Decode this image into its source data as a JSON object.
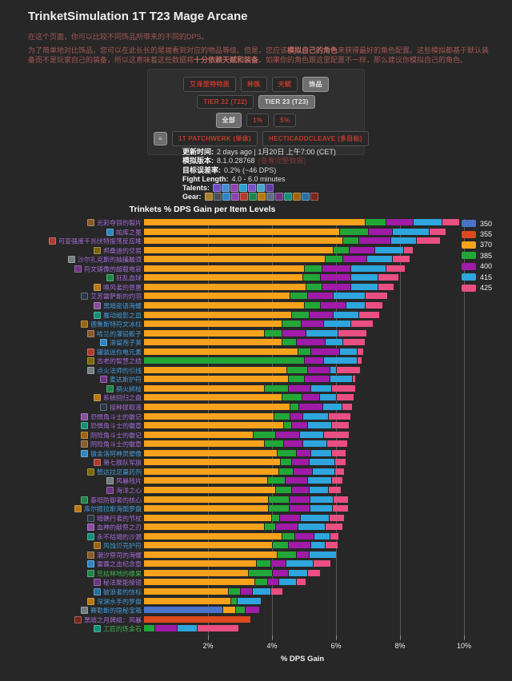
{
  "page": {
    "title": "TrinketSimulation 1T T23 Mage Arcane",
    "intro1": "在这个页面，你可以比较不同饰品所带来的不同的DPS。",
    "intro2_parts": [
      {
        "t": "为了简单地对比饰品，您可以在此长长的尾端看到对应的物品等级。但是，您应该"
      },
      {
        "t": "模拟自己的角色",
        "b": true
      },
      {
        "t": "来获得最好的角色配置。这些模拟都基于默认装备而不是玩家自己的装备，所以这意味着这些数据将"
      },
      {
        "t": "十分依赖天赋和装备",
        "b": true
      },
      {
        "t": "。如果你的角色跟这里配置不一样，那么建议你模拟自己的角色。"
      }
    ]
  },
  "controls": {
    "rows": [
      {
        "name": "data-type",
        "buttons": [
          {
            "label": "艾泽里特特质",
            "selected": false
          },
          {
            "label": "种族",
            "selected": false
          },
          {
            "label": "天赋",
            "selected": false
          },
          {
            "label": "饰品",
            "selected": true
          }
        ]
      },
      {
        "name": "tier",
        "buttons": [
          {
            "label": "TIER 22 (T22)",
            "selected": false
          },
          {
            "label": "TIER 23 (T23)",
            "selected": true
          }
        ]
      },
      {
        "name": "filter",
        "buttons": [
          {
            "label": "全部",
            "selected": true
          },
          {
            "label": "1%",
            "selected": false
          },
          {
            "label": "5%",
            "selected": false
          }
        ]
      },
      {
        "name": "fight-style",
        "buttons": [
          {
            "label": "≡",
            "selected": true,
            "mini": true
          },
          {
            "label": "1T PATCHWERK (单体)",
            "selected": false
          },
          {
            "label": "HECTICADDCLEAVE (多目标)",
            "selected": false
          }
        ]
      }
    ]
  },
  "info": {
    "lines": [
      {
        "label": "更新时间:",
        "value": "2 days ago | 1月20日 上午7:00 (CET)"
      },
      {
        "label": "模拟版本:",
        "value": "8.1.0.28768",
        "extra": "(查看完整数据)"
      },
      {
        "label": "目标误差率:",
        "value": "0.2% (~46 DPS)"
      },
      {
        "label": "Fight Length:",
        "value": "4.0 - 6.0 minutes"
      },
      {
        "label": "Talents:",
        "tiles": [
          "#6d4bc4",
          "#3f8fd4",
          "#8e44ad",
          "#2e9fd0",
          "#7652c8",
          "#4aa3c8",
          "#5b3aa8"
        ]
      },
      {
        "label": "Gear:",
        "tiles": [
          "#a8802a",
          "#4a4f55",
          "#2e86c1",
          "#8e44ad",
          "#b03a2e",
          "#1e8449",
          "#b9770e",
          "#5d6d7e",
          "#6c3483",
          "#148f77",
          "#9c640c",
          "#2471a3",
          "#7b241c"
        ]
      }
    ]
  },
  "chart_data": {
    "type": "bar",
    "stacked": true,
    "title": "Trinkets % DPS Gain per Item Levels",
    "xlabel": "% DPS Gain",
    "xlim": [
      0,
      11
    ],
    "x_ticks": [
      {
        "v": 2,
        "label": "2%"
      },
      {
        "v": 4,
        "label": "4%"
      },
      {
        "v": 6,
        "label": "6%"
      },
      {
        "v": 8,
        "label": "8%"
      },
      {
        "v": 10,
        "label": "10%"
      }
    ],
    "grid": true,
    "legend_position": "top-right",
    "ilvl_order": [
      "350",
      "355",
      "370",
      "385",
      "400",
      "415",
      "425"
    ],
    "ilvl_colors": {
      "350": "#4a73c9",
      "355": "#dd4a1e",
      "370": "#f6a21c",
      "385": "#23a638",
      "400": "#a01ba8",
      "415": "#2ea5dd",
      "425": "#e94f82"
    },
    "legend": [
      {
        "label": "350"
      },
      {
        "label": "355"
      },
      {
        "label": "370"
      },
      {
        "label": "385"
      },
      {
        "label": "400"
      },
      {
        "label": "415"
      },
      {
        "label": "425"
      }
    ],
    "rows": [
      {
        "name": "光彩夺目的裂片",
        "quality": "p",
        "icon": "#8a5a2b",
        "segments": {
          "370": 6.9,
          "385": 0.65,
          "400": 0.85,
          "415": 0.9,
          "425": 0.55
        }
      },
      {
        "name": "帕库之冕",
        "quality": "p",
        "icon": "#2e86c1",
        "segments": {
          "370": 6.1,
          "385": 0.9,
          "400": 0.75,
          "415": 1.15,
          "425": 0.52
        }
      },
      {
        "name": "可变强度千兆伏特振荡反应堆",
        "quality": "p",
        "icon": "#b03a2e",
        "segments": {
          "370": 6.2,
          "385": 0.5,
          "400": 1.0,
          "415": 0.8,
          "425": 0.75
        }
      },
      {
        "name": "邦桑迪的交易",
        "quality": "p",
        "icon": "#7d6608",
        "segments": {
          "370": 5.9,
          "385": 0.5,
          "400": 0.8,
          "415": 0.9,
          "425": 0.3
        }
      },
      {
        "name": "沙尔扎克斯的抽搐触须",
        "quality": "p",
        "icon": "#717d7e",
        "segments": {
          "370": 5.65,
          "385": 0.55,
          "400": 0.75,
          "415": 0.8,
          "425": 0.55
        }
      },
      {
        "name": "符文铸像的超载电容",
        "quality": "p",
        "icon": "#6c3483",
        "segments": {
          "370": 5.0,
          "385": 0.55,
          "400": 0.9,
          "415": 1.1,
          "425": 0.6
        }
      },
      {
        "name": "狂乱血球",
        "quality": "p",
        "icon": "#1e8449",
        "segments": {
          "370": 4.95,
          "385": 0.55,
          "400": 0.95,
          "415": 0.85,
          "425": 0.65
        }
      },
      {
        "name": "唤风者的恩惠",
        "quality": "p",
        "icon": "#b9770e",
        "segments": {
          "370": 5.05,
          "385": 0.5,
          "400": 0.9,
          "415": 0.85,
          "425": 0.5
        }
      },
      {
        "name": "艾苏雷萨斯的灼羽",
        "quality": "p",
        "icon": "#283747",
        "segments": {
          "370": 4.55,
          "385": 0.55,
          "400": 0.8,
          "415": 1.0,
          "425": 0.7
        }
      },
      {
        "name": "黑暗密语海螺",
        "quality": "b",
        "icon": "#884ea0",
        "segments": {
          "370": 5.0,
          "385": 0.5,
          "400": 0.8,
          "415": 0.6,
          "425": 0.55
        }
      },
      {
        "name": "蠢动暗影之皿",
        "quality": "b",
        "icon": "#148f77",
        "segments": {
          "370": 4.6,
          "385": 0.55,
          "400": 0.75,
          "415": 0.8,
          "425": 0.65
        }
      },
      {
        "name": "德鲁斯特符文冰柱",
        "quality": "b",
        "icon": "#9c640c",
        "segments": {
          "370": 4.3,
          "385": 0.6,
          "400": 0.7,
          "415": 0.85,
          "425": 0.7
        }
      },
      {
        "name": "哈兰的灌铅骰子",
        "quality": "b",
        "icon": "#8a5a2b",
        "segments": {
          "370": 3.75,
          "385": 0.55,
          "400": 0.75,
          "415": 1.0,
          "425": 0.9
        }
      },
      {
        "name": "滞留孢子荚",
        "quality": "b",
        "icon": "#2e86c1",
        "segments": {
          "370": 4.3,
          "385": 0.45,
          "400": 0.9,
          "415": 0.55,
          "425": 0.7
        }
      },
      {
        "name": "罐装迷你电元素",
        "quality": "b",
        "icon": "#b03a2e",
        "segments": {
          "370": 4.8,
          "385": 0.4,
          "400": 0.9,
          "415": 0.55,
          "425": 0.2
        }
      },
      {
        "name": "古老的智慧之结",
        "quality": "p",
        "icon": "#7d6608",
        "segments": {
          "385": 5.0,
          "400": 0.6,
          "415": 1.05,
          "425": 0.15
        }
      },
      {
        "name": "点火法师的引线",
        "quality": "b",
        "icon": "#717d7e",
        "segments": {
          "370": 4.45,
          "385": 0.65,
          "400": 0.7,
          "415": 0.2,
          "425": 0.75
        }
      },
      {
        "name": "麦达斯护符",
        "quality": "b",
        "icon": "#6c3483",
        "segments": {
          "370": 4.5,
          "385": 0.5,
          "400": 0.8,
          "415": 0.7,
          "425": 0.1
        }
      },
      {
        "name": "祸火树枝",
        "quality": "b",
        "icon": "#1e8449",
        "segments": {
          "370": 3.75,
          "385": 0.75,
          "400": 0.7,
          "415": 0.65,
          "425": 0.75
        }
      },
      {
        "name": "系统回归之盘",
        "quality": "p",
        "icon": "#b9770e",
        "segments": {
          "370": 4.3,
          "385": 0.62,
          "400": 0.55,
          "415": 0.53,
          "425": 0.55
        }
      },
      {
        "name": "接种提取液",
        "quality": "p",
        "icon": "#283747",
        "segments": {
          "370": 4.55,
          "385": 0.28,
          "400": 0.75,
          "415": 0.6,
          "425": 0.32
        }
      },
      {
        "name": "恐惧角斗士的徽记",
        "quality": "p",
        "icon": "#884ea0",
        "segments": {
          "370": 4.05,
          "385": 0.5,
          "400": 0.4,
          "415": 0.8,
          "425": 0.7
        }
      },
      {
        "name": "恐惧角斗士的徽章",
        "quality": "p",
        "icon": "#148f77",
        "segments": {
          "370": 4.35,
          "385": 0.25,
          "400": 0.5,
          "415": 0.75,
          "425": 0.55
        }
      },
      {
        "name": "阴险角斗士的徽记",
        "quality": "p",
        "icon": "#9c640c",
        "segments": {
          "370": 3.4,
          "385": 0.7,
          "400": 0.75,
          "415": 0.75,
          "425": 0.8
        }
      },
      {
        "name": "阴险角斗士的徽章",
        "quality": "p",
        "icon": "#8a5a2b",
        "segments": {
          "370": 3.75,
          "385": 0.6,
          "400": 0.6,
          "415": 0.75,
          "425": 0.65
        }
      },
      {
        "name": "镀金洛阿神灵塑像",
        "quality": "b",
        "icon": "#2e86c1",
        "segments": {
          "370": 4.15,
          "385": 0.6,
          "400": 0.45,
          "415": 0.65,
          "425": 0.45
        }
      },
      {
        "name": "第七舰队军旗",
        "quality": "p",
        "icon": "#b03a2e",
        "segments": {
          "370": 4.25,
          "385": 0.35,
          "400": 0.55,
          "415": 0.8,
          "425": 0.35
        }
      },
      {
        "name": "赞达拉足量药剂",
        "quality": "b",
        "icon": "#7d6608",
        "segments": {
          "370": 4.2,
          "385": 0.45,
          "400": 0.6,
          "415": 0.7,
          "425": 0.3
        }
      },
      {
        "name": "风暴残片",
        "quality": "p",
        "icon": "#717d7e",
        "segments": {
          "370": 3.85,
          "385": 0.55,
          "400": 0.7,
          "415": 0.75,
          "425": 0.35
        }
      },
      {
        "name": "海洋之心",
        "quality": "p",
        "icon": "#6c3483",
        "segments": {
          "370": 4.1,
          "385": 0.5,
          "400": 0.55,
          "415": 0.6,
          "425": 0.4
        }
      },
      {
        "name": "泰坦防御者的核心",
        "quality": "p",
        "icon": "#1e8449",
        "segments": {
          "370": 3.87,
          "385": 0.66,
          "400": 0.64,
          "415": 0.73,
          "425": 0.48
        }
      },
      {
        "name": "库尔提拉斯海图罗盘",
        "quality": "b",
        "icon": "#b9770e",
        "segments": {
          "370": 3.87,
          "385": 0.65,
          "400": 0.65,
          "415": 0.7,
          "425": 0.5
        }
      },
      {
        "name": "暗礁行者的节杖",
        "quality": "p",
        "icon": "#283747",
        "segments": {
          "370": 3.97,
          "385": 0.25,
          "400": 0.65,
          "415": 0.9,
          "425": 0.47
        }
      },
      {
        "name": "血神的献祭之刃",
        "quality": "p",
        "icon": "#884ea0",
        "segments": {
          "370": 3.76,
          "385": 0.35,
          "400": 0.7,
          "415": 0.85,
          "425": 0.54
        }
      },
      {
        "name": "永不枯竭的沙漏",
        "quality": "p",
        "icon": "#148f77",
        "segments": {
          "370": 4.3,
          "385": 0.4,
          "400": 0.6,
          "415": 0.5,
          "425": 0.28
        }
      },
      {
        "name": "风蚀贝壳护符",
        "quality": "b",
        "icon": "#9c640c",
        "segments": {
          "370": 4.0,
          "385": 0.5,
          "400": 0.7,
          "415": 0.45,
          "425": 0.39
        }
      },
      {
        "name": "潮汐祭司的海螺",
        "quality": "p",
        "icon": "#8a5a2b",
        "segments": {
          "370": 4.15,
          "385": 0.6,
          "400": 0.4,
          "415": 0.85
        }
      },
      {
        "name": "雷霆之击纪念章",
        "quality": "p",
        "icon": "#2e86c1",
        "segments": {
          "370": 3.5,
          "385": 0.45,
          "400": 0.48,
          "415": 0.85,
          "425": 0.55
        }
      },
      {
        "name": "荒枯林地的橡果",
        "quality": "g",
        "icon": "#1e8449",
        "segments": {
          "370": 3.25,
          "385": 0.75,
          "400": 0.5,
          "415": 0.6,
          "425": 0.4
        }
      },
      {
        "name": "秘法聚能棱镜",
        "quality": "p",
        "icon": "#6c3483",
        "segments": {
          "370": 3.45,
          "385": 0.4,
          "400": 0.35,
          "415": 0.55,
          "425": 0.29
        }
      },
      {
        "name": "破浪者的信标",
        "quality": "b",
        "icon": "#2471a3",
        "segments": {
          "370": 2.62,
          "385": 0.37,
          "400": 0.38,
          "415": 0.58,
          "425": 0.38
        }
      },
      {
        "name": "深渊水手的罗盘",
        "quality": "b",
        "icon": "#b9770e",
        "segments": {
          "370": 2.7,
          "385": 0.2,
          "415": 0.75
        }
      },
      {
        "name": "赛勒斯的隐秘宝箱",
        "quality": "b",
        "icon": "#717d7e",
        "segments": {
          "350": 2.45,
          "370": 0.4,
          "385": 0.3,
          "400": 0.45
        }
      },
      {
        "name": "黑暗之月牌组：风暴",
        "quality": "p",
        "icon": "#7b241c",
        "segments": {
          "355": 3.33
        }
      },
      {
        "name": "工匠的炼金石",
        "quality": "g",
        "icon": "#148f77",
        "segments": {
          "385": 0.33,
          "400": 0.7,
          "415": 0.62,
          "425": 1.3
        }
      }
    ]
  }
}
